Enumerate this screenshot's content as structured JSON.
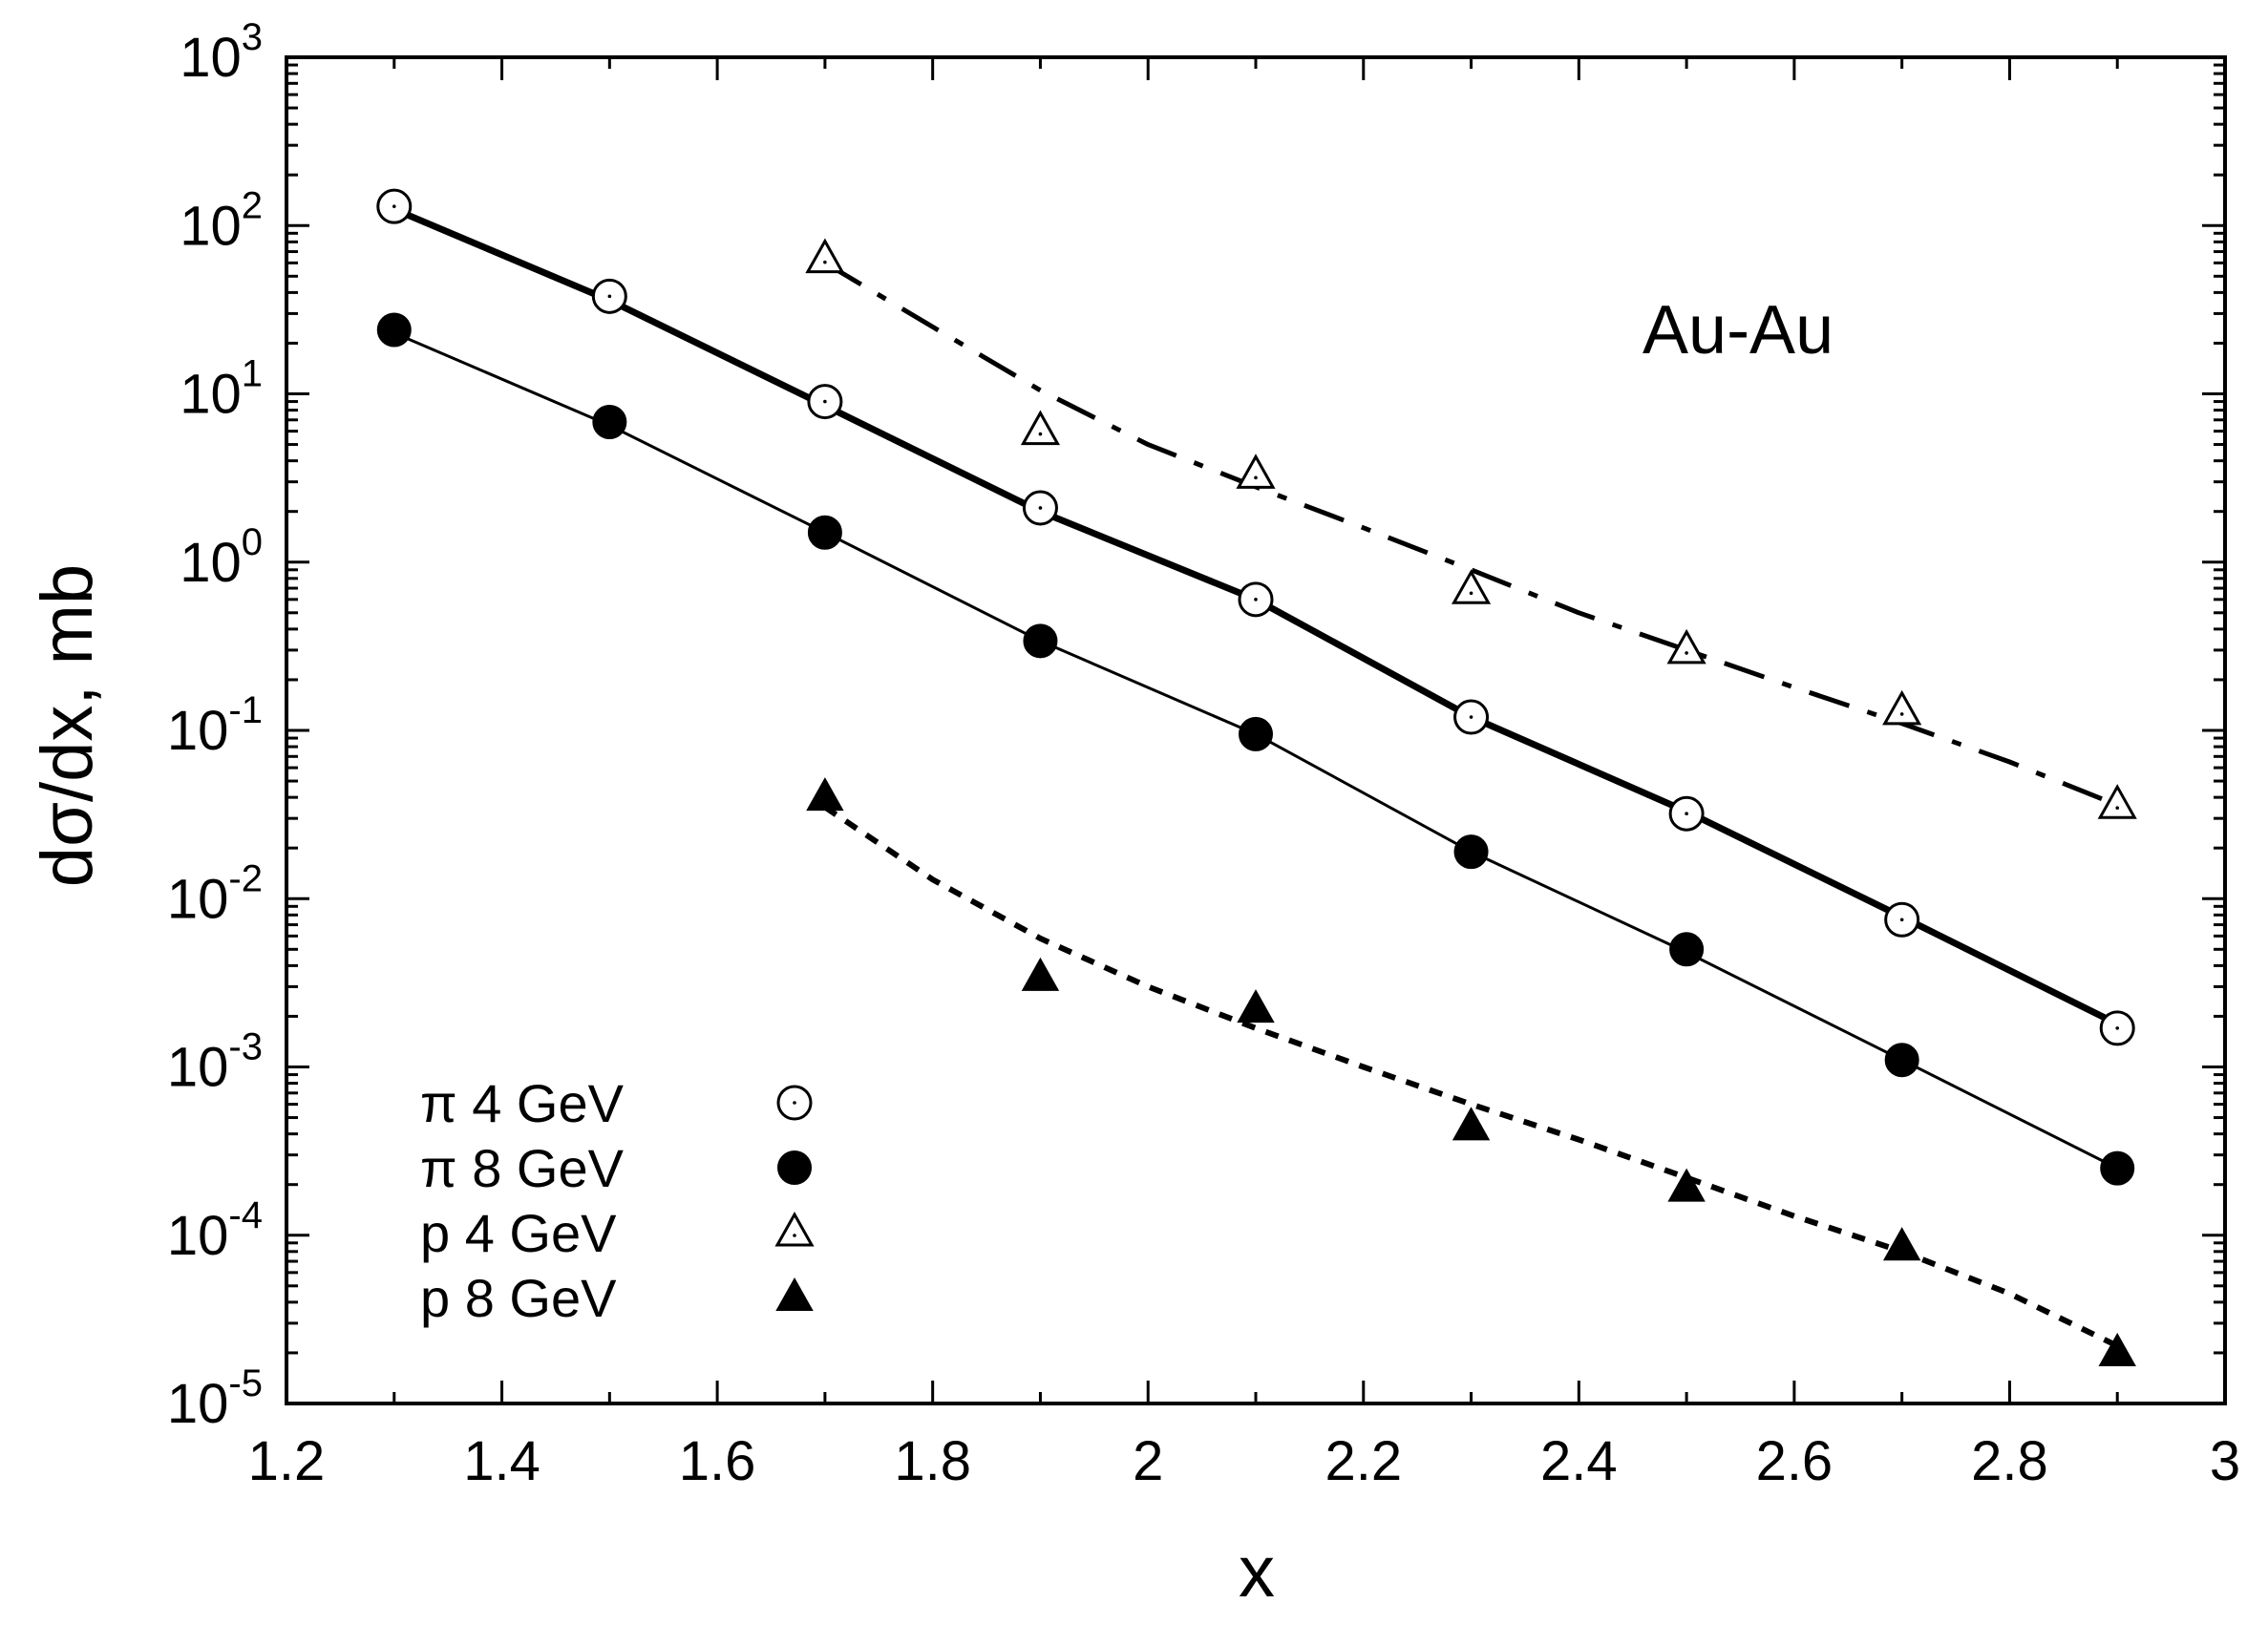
{
  "chart_data": {
    "type": "line",
    "xlabel": "x",
    "ylabel": "dσ/dx, mb",
    "xlim": [
      1.2,
      3.0
    ],
    "ylim": [
      1e-05,
      1000
    ],
    "yscale": "log",
    "grid": false,
    "legend_position": "bottom-left",
    "annotation": "Au-Au",
    "x_ticks": [
      "1.2",
      "1.4",
      "1.6",
      "1.8",
      "2",
      "2.2",
      "2.4",
      "2.6",
      "2.8",
      "3"
    ],
    "y_tick_mantissa": "10",
    "y_tick_exponents": [
      "-5",
      "-4",
      "-3",
      "-2",
      "-1",
      "0",
      "1",
      "2",
      "3"
    ],
    "series": [
      {
        "name": "π 4 GeV",
        "marker": "open-circle",
        "line": "solid-thick",
        "points_x": [
          1.3,
          1.5,
          1.7,
          1.9,
          2.1,
          2.3,
          2.5,
          2.7,
          2.9
        ],
        "points_y": [
          130,
          38,
          9,
          2.1,
          0.6,
          0.12,
          0.032,
          0.0075,
          0.0017
        ],
        "curve_x": [
          1.3,
          1.5,
          1.7,
          1.9,
          2.1,
          2.3,
          2.5,
          2.7,
          2.9
        ],
        "curve_y": [
          125,
          36,
          8.5,
          2.0,
          0.6,
          0.12,
          0.033,
          0.0078,
          0.0018
        ]
      },
      {
        "name": "π 8 GeV",
        "marker": "filled-circle",
        "line": "solid-thin",
        "points_x": [
          1.3,
          1.5,
          1.7,
          1.9,
          2.1,
          2.3,
          2.5,
          2.7,
          2.9
        ],
        "points_y": [
          24,
          6.8,
          1.5,
          0.34,
          0.095,
          0.019,
          0.005,
          0.0011,
          0.00025
        ],
        "curve_x": [
          1.3,
          1.5,
          1.7,
          1.9,
          2.1,
          2.3,
          2.5,
          2.7,
          2.9
        ],
        "curve_y": [
          23,
          6.5,
          1.5,
          0.34,
          0.095,
          0.019,
          0.0048,
          0.0011,
          0.00025
        ]
      },
      {
        "name": "p 4 GeV",
        "marker": "open-triangle",
        "line": "dash-dot",
        "points_x": [
          1.7,
          1.9,
          2.1,
          2.3,
          2.5,
          2.7,
          2.9
        ],
        "points_y": [
          63,
          6.0,
          3.3,
          0.68,
          0.3,
          0.13,
          0.036
        ],
        "curve_x": [
          1.7,
          1.8,
          1.9,
          2.0,
          2.1,
          2.2,
          2.3,
          2.4,
          2.5,
          2.6,
          2.7,
          2.8,
          2.9
        ],
        "curve_y": [
          60,
          25,
          10.5,
          5.0,
          2.8,
          1.6,
          0.9,
          0.5,
          0.3,
          0.18,
          0.11,
          0.065,
          0.036
        ]
      },
      {
        "name": "p 8 GeV",
        "marker": "filled-triangle",
        "line": "dotted",
        "points_x": [
          1.7,
          1.9,
          2.1,
          2.3,
          2.5,
          2.7,
          2.9
        ],
        "points_y": [
          0.04,
          0.0034,
          0.0022,
          0.00044,
          0.00019,
          8.5e-05,
          2e-05
        ],
        "curve_x": [
          1.7,
          1.8,
          1.9,
          2.0,
          2.1,
          2.2,
          2.3,
          2.4,
          2.5,
          2.6,
          2.7,
          2.8,
          2.9
        ],
        "curve_y": [
          0.035,
          0.013,
          0.0058,
          0.003,
          0.0017,
          0.001,
          0.0006,
          0.00037,
          0.00022,
          0.00013,
          8e-05,
          4.5e-05,
          2.2e-05
        ]
      }
    ]
  }
}
